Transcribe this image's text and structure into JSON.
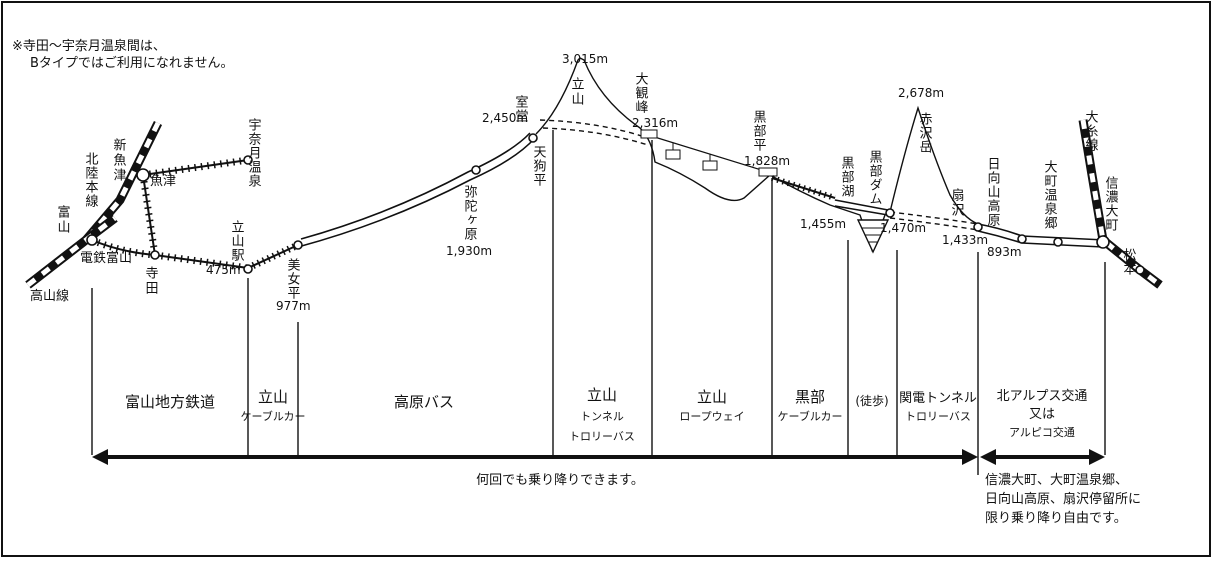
{
  "note": {
    "line1": "※寺田～宇奈月温泉間は、",
    "line2": "Bタイプではご利用になれません。"
  },
  "stations": {
    "takayama_line": "高山線",
    "hokuriku_line": "北陸本線",
    "toyama": "富山",
    "dentetsu_toyama": "電鉄富山",
    "shin_uozu": "新魚津",
    "uozu": "魚津",
    "unazuki": "宇奈月温泉",
    "terada": "寺田",
    "tateyama_eki": "立山駅",
    "bijodaira": "美女平",
    "midagahara": "弥陀ヶ原",
    "tengudaira": "天狗平",
    "murodo": "室堂",
    "tateyama_peak": "立山",
    "daikanbo": "大観峰",
    "kurobedaira": "黒部平",
    "kurobeko": "黒部湖",
    "kurobe_dam": "黒部ダム",
    "akazawadake": "赤沢岳",
    "ogisawa": "扇沢",
    "hinatayama": "日向山高原",
    "omachi_onsen": "大町温泉郷",
    "shinano_omachi": "信濃大町",
    "oito_line": "大糸線",
    "matsumoto": "松本"
  },
  "elevations": {
    "tateyama_eki": "475m",
    "bijodaira": "977m",
    "midagahara": "1,930m",
    "murodo": "2,450m",
    "tateyama_peak": "3,015m",
    "daikanbo": "2,316m",
    "kurobedaira": "1,828m",
    "kurobeko": "1,455m",
    "kurobe_dam": "1,470m",
    "akazawadake": "2,678m",
    "ogisawa": "1,433m",
    "shinano_omachi": "893m"
  },
  "sections": {
    "toyama_railway": "富山地方鉄道",
    "tateyama_cable_1": "立山",
    "tateyama_cable_2": "ケーブルカー",
    "kogen_bus": "高原バス",
    "tunnel_1": "立山",
    "tunnel_2": "トンネル",
    "tunnel_3": "トロリーバス",
    "ropeway_1": "立山",
    "ropeway_2": "ロープウェイ",
    "kurobe_cable_1": "黒部",
    "kurobe_cable_2": "ケーブルカー",
    "walk": "(徒歩)",
    "kanden_1": "関電トンネル",
    "kanden_2": "トロリーバス",
    "alps_1": "北アルプス交通",
    "alps_2": "又は",
    "alps_3": "アルピコ交通"
  },
  "arrows": {
    "main": "何回でも乗り降りできます。",
    "side_1": "信濃大町、大町温泉郷、",
    "side_2": "日向山高原、扇沢停留所に",
    "side_3": "限り乗り降り自由です。"
  },
  "colors": {
    "ink": "#111111",
    "background": "#ffffff"
  }
}
